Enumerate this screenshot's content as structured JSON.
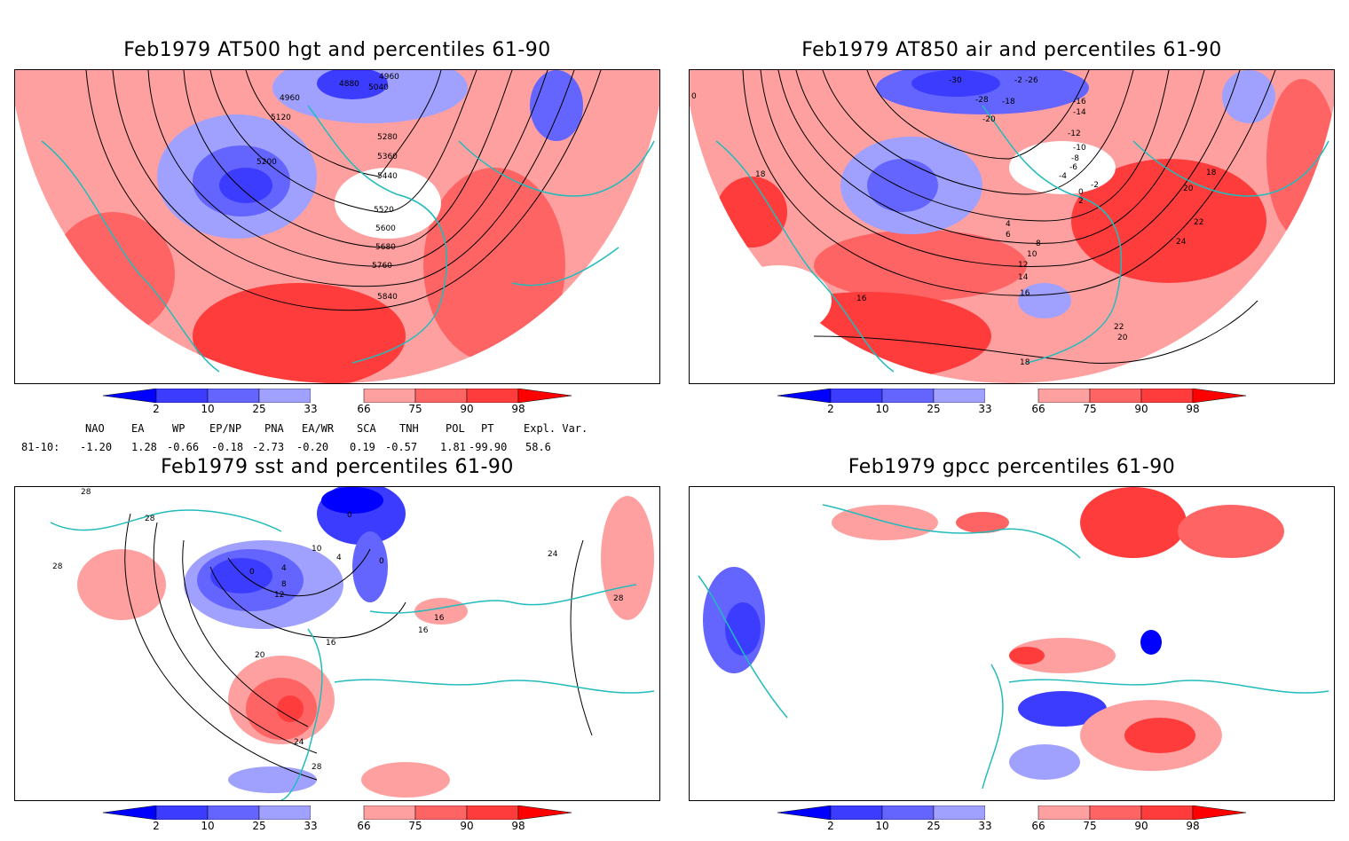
{
  "panels": [
    {
      "title": "Feb1979 AT500 hgt and percentiles 61-90",
      "contour_labels": [
        "4880",
        "4960",
        "5040",
        "4960",
        "5120",
        "5200",
        "5280",
        "5360",
        "5440",
        "5520",
        "5600",
        "5680",
        "5760",
        "5840"
      ]
    },
    {
      "title": "Feb1979 AT850 air and percentiles 61-90",
      "contour_labels": [
        "-30",
        "-26",
        "-28",
        "-2",
        "-18",
        "-20",
        "-16",
        "-14",
        "-12",
        "-10",
        "-8",
        "-6",
        "-4",
        "-2",
        "0",
        "2",
        "4",
        "6",
        "8",
        "10",
        "12",
        "14",
        "16",
        "18",
        "20",
        "22",
        "24",
        "18",
        "16",
        "22",
        "20",
        "18",
        "0"
      ]
    },
    {
      "title": "Feb1979 sst and percentiles 61-90",
      "contour_labels": [
        "28",
        "28",
        "28",
        "0",
        "10",
        "4",
        "0",
        "0",
        "4",
        "8",
        "12",
        "16",
        "16",
        "16",
        "20",
        "24",
        "24",
        "28",
        "28"
      ]
    },
    {
      "title": "Feb1979 gpcc percentiles 61-90",
      "contour_labels": []
    }
  ],
  "colorbar": {
    "ticks": [
      "2",
      "10",
      "25",
      "33",
      "66",
      "75",
      "90",
      "98"
    ],
    "colors": [
      "#0000ff",
      "#3c3cff",
      "#6464ff",
      "#a0a0ff",
      "#ffffff",
      "#ffa0a0",
      "#ff6464",
      "#ff3c3c",
      "#ff0000"
    ]
  },
  "indices": {
    "headers": [
      "NAO",
      "EA",
      "WP",
      "EP/NP",
      "PNA",
      "EA/WR",
      "SCA",
      "TNH",
      "POL",
      "PT",
      "Expl. Var."
    ],
    "period": "81-10:",
    "values": [
      "-1.20",
      "1.28",
      "-0.66",
      "-0.18",
      "-2.73",
      "-0.20",
      "0.19",
      "-0.57",
      "1.81",
      "-99.90",
      "58.6"
    ]
  }
}
